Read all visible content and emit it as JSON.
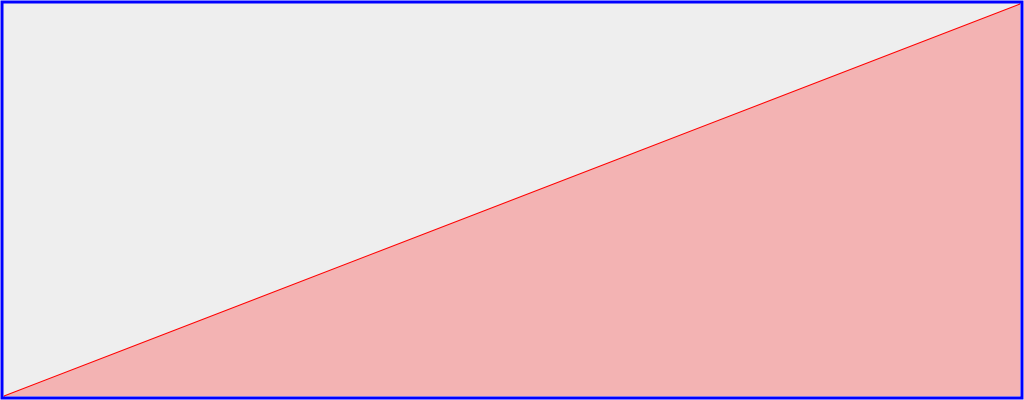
{
  "chart_data": {
    "type": "area",
    "x": [
      0,
      1
    ],
    "y": [
      0,
      1
    ],
    "xlim": [
      0,
      1
    ],
    "ylim": [
      0,
      1
    ],
    "grid": false,
    "colors": {
      "border": "#0000ff",
      "background": "#eeeeee",
      "line": "#ff0000",
      "fill": "#f3b3b3"
    }
  }
}
